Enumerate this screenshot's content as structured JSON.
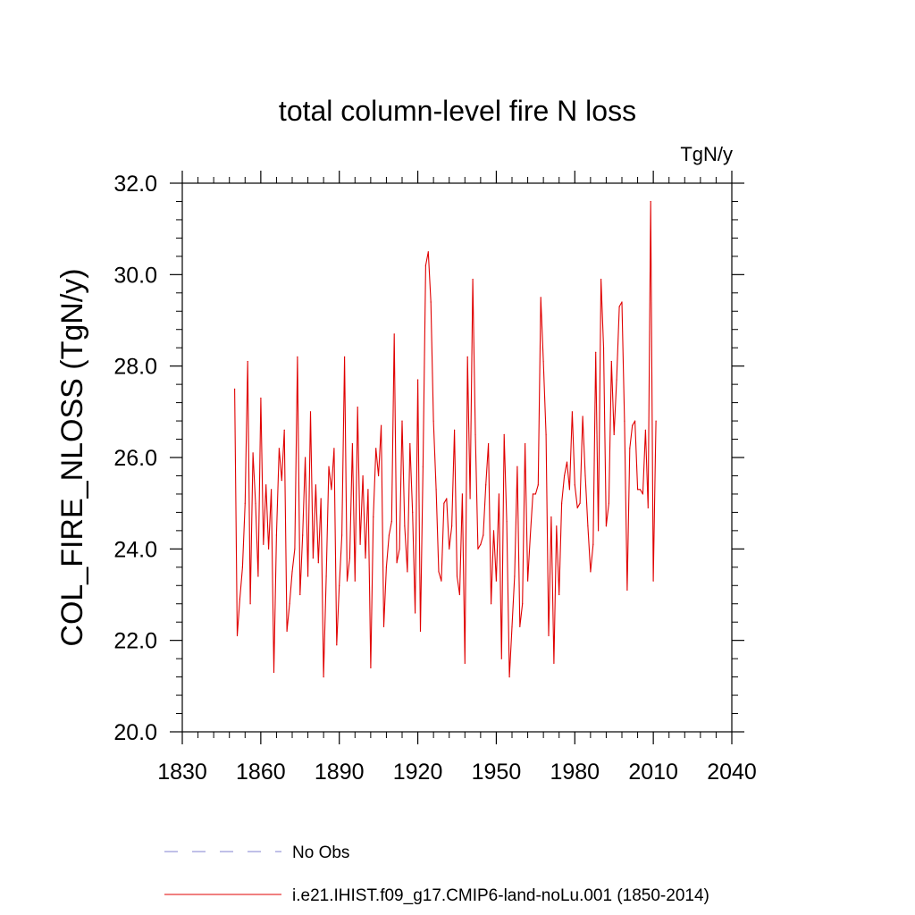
{
  "chart_data": {
    "type": "line",
    "title": "total column-level fire N loss",
    "units": "TgN/y",
    "ylabel": "COL_FIRE_NLOSS  (TgN/y)",
    "xlabel": "",
    "xlim": [
      1830,
      2040
    ],
    "ylim": [
      20.0,
      32.0
    ],
    "xticks": [
      1830,
      1860,
      1890,
      1920,
      1950,
      1980,
      2010,
      2040
    ],
    "xtick_labels": [
      "1830",
      "1860",
      "1890",
      "1920",
      "1950",
      "1980",
      "2010",
      "2040"
    ],
    "yticks": [
      20,
      22,
      24,
      26,
      28,
      30,
      32
    ],
    "ytick_labels": [
      "20.0",
      "22.0",
      "24.0",
      "26.0",
      "28.0",
      "30.0",
      "32.0"
    ],
    "grid": false,
    "legend_position": "bottom",
    "legend": [
      {
        "label": "No Obs",
        "color": "#8080d0",
        "style": "dashed"
      },
      {
        "label": "i.e21.IHIST.f09_g17.CMIP6-land-noLu.001 (1850-2014)",
        "color": "#e00000",
        "style": "solid"
      }
    ],
    "series": [
      {
        "name": "i.e21.IHIST.f09_g17.CMIP6-land-noLu.001 (1850-2014)",
        "color": "#e00000",
        "x_start": 1850,
        "x_step": 1,
        "values": [
          27.5,
          22.1,
          22.9,
          23.6,
          25.0,
          28.1,
          22.8,
          26.1,
          25.0,
          23.4,
          27.3,
          24.1,
          25.4,
          24.0,
          25.3,
          21.3,
          24.3,
          26.2,
          25.5,
          26.6,
          22.2,
          22.8,
          23.5,
          24.0,
          28.2,
          23.0,
          24.3,
          26.0,
          23.4,
          27.0,
          23.8,
          25.4,
          23.7,
          25.1,
          21.2,
          23.4,
          25.8,
          25.3,
          26.2,
          21.9,
          23.2,
          24.3,
          28.2,
          23.3,
          23.8,
          26.3,
          23.3,
          27.1,
          24.1,
          25.6,
          23.8,
          25.3,
          21.4,
          24.7,
          26.2,
          25.6,
          26.7,
          22.3,
          23.6,
          24.3,
          24.6,
          28.7,
          23.7,
          24.0,
          26.8,
          24.5,
          23.5,
          26.3,
          24.8,
          22.6,
          27.7,
          22.2,
          25.8,
          30.2,
          30.5,
          29.4,
          26.8,
          25.3,
          23.5,
          23.3,
          25.0,
          25.1,
          24.0,
          24.5,
          26.6,
          23.4,
          23.0,
          25.2,
          21.5,
          28.2,
          25.1,
          29.9,
          26.5,
          24.0,
          24.1,
          24.3,
          25.4,
          26.3,
          22.8,
          24.4,
          23.3,
          25.2,
          21.6,
          26.5,
          24.6,
          21.2,
          22.3,
          23.4,
          25.8,
          22.3,
          22.8,
          26.3,
          23.3,
          24.3,
          25.2,
          25.2,
          25.4,
          29.5,
          28.1,
          26.5,
          22.1,
          24.7,
          21.5,
          24.5,
          23.0,
          25.0,
          25.6,
          25.9,
          25.3,
          27.0,
          25.4,
          24.9,
          25.0,
          26.9,
          25.6,
          24.5,
          23.5,
          24.1,
          28.3,
          24.4,
          29.9,
          28.4,
          24.5,
          25.0,
          28.1,
          26.5,
          27.7,
          29.3,
          29.4,
          26.8,
          23.1,
          26.2,
          26.7,
          26.8,
          25.3,
          25.3,
          25.2,
          26.6,
          24.9,
          31.6,
          23.3,
          26.8
        ]
      }
    ]
  }
}
